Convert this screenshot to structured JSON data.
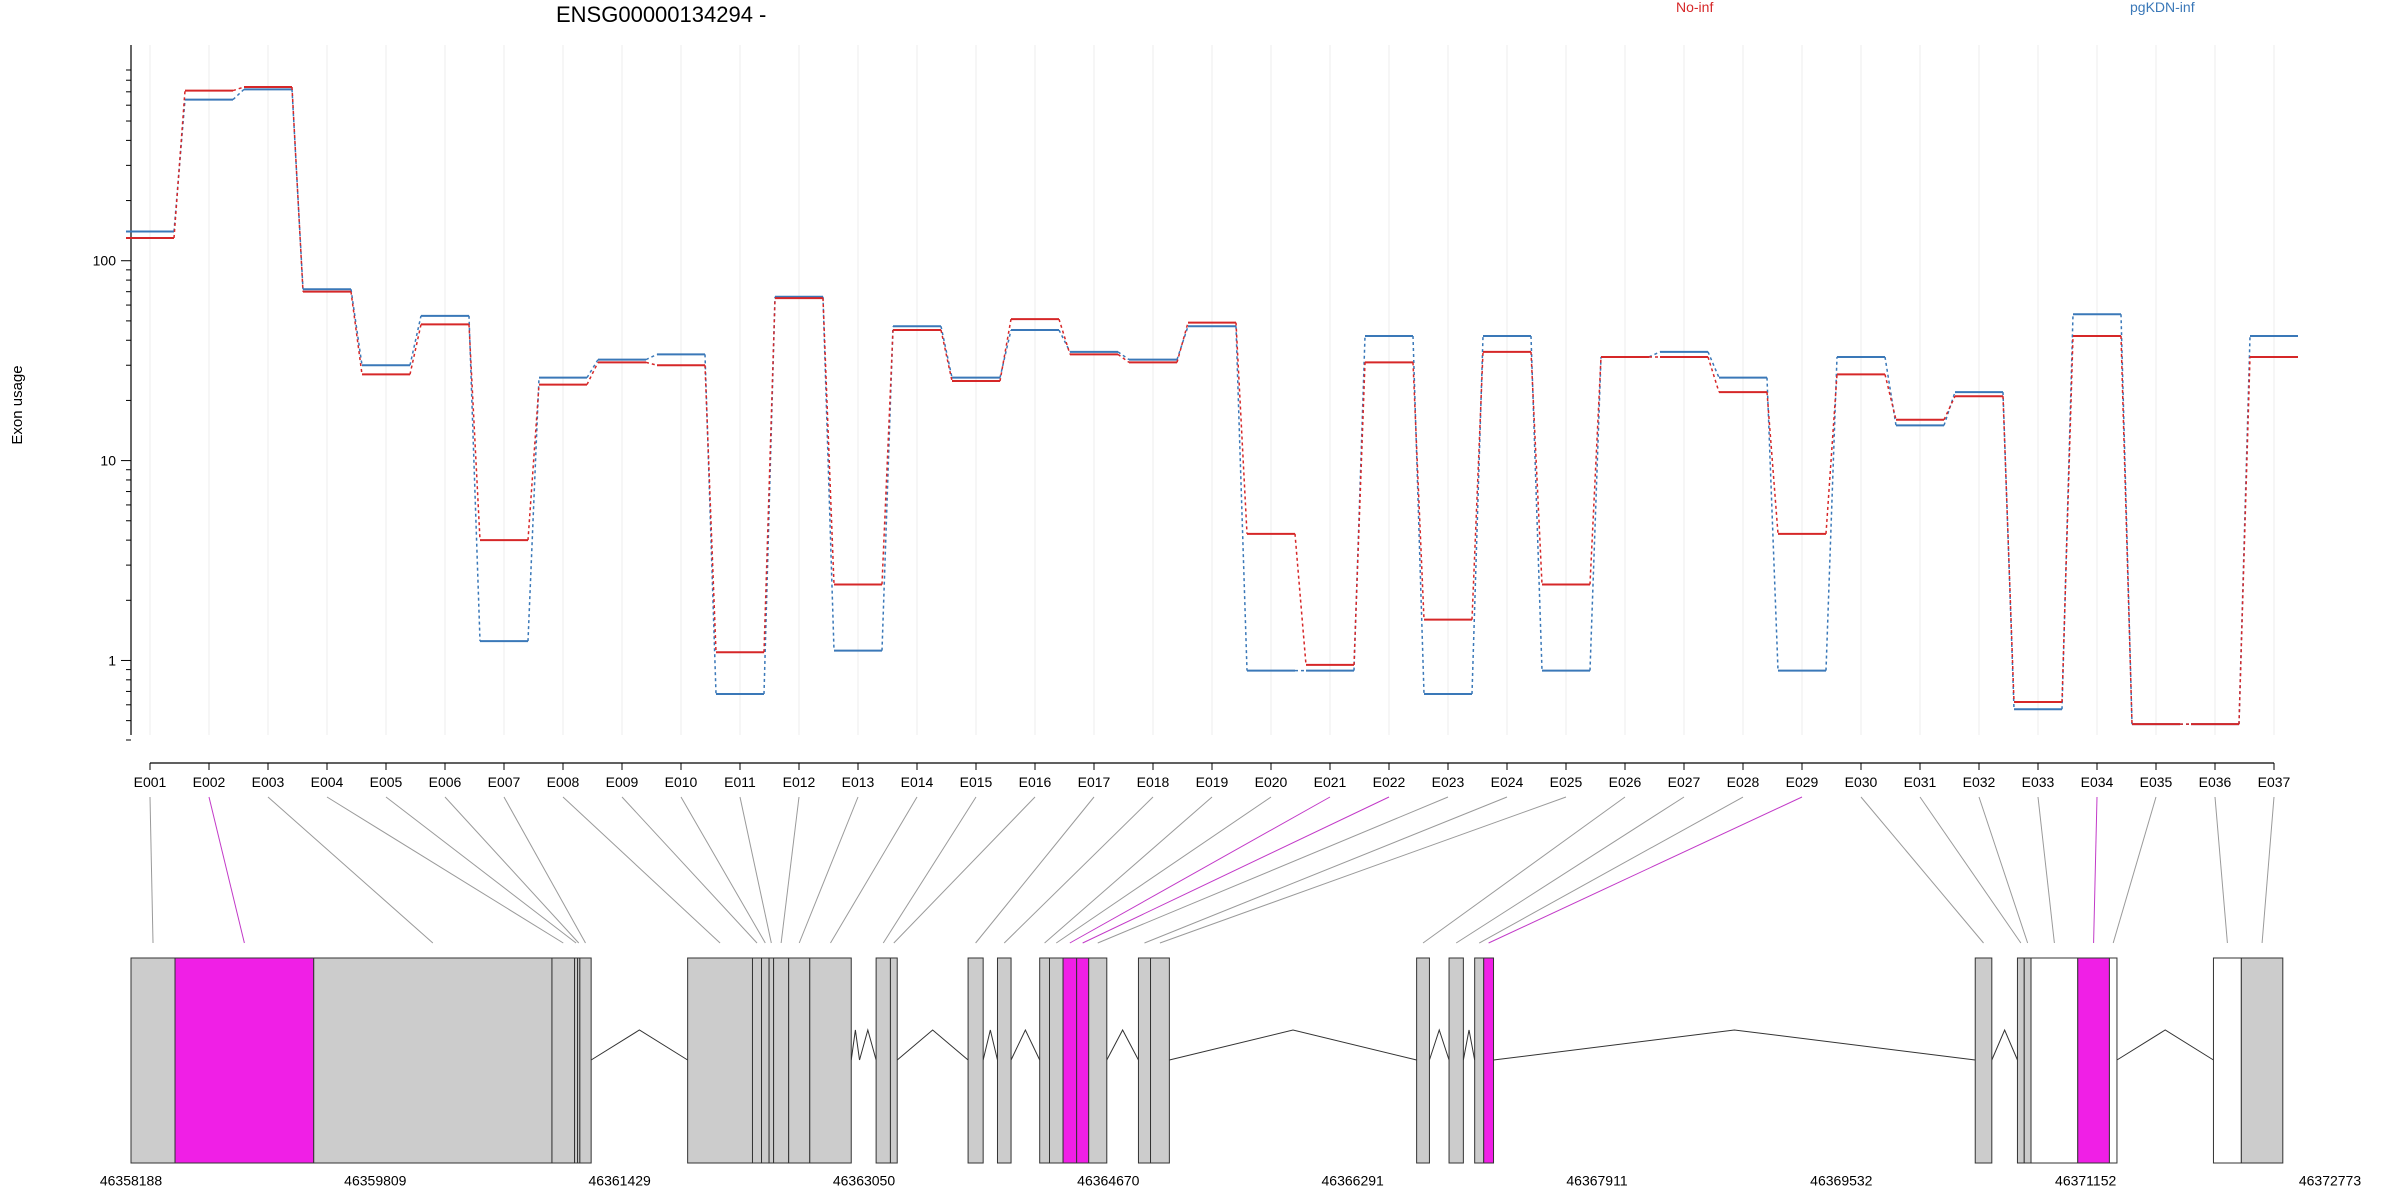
{
  "header": {
    "title": "ENSG00000134294 -",
    "legend": [
      {
        "label": "No-inf",
        "color": "#d62728"
      },
      {
        "label": "pgKDN-inf",
        "color": "#3a78b8"
      }
    ]
  },
  "chart_data": {
    "type": "line",
    "ylabel": "Exon usage",
    "yscale": "log",
    "ylim": [
      0.4,
      900
    ],
    "yticks": [
      "1",
      "10",
      "100"
    ],
    "categories": [
      "E001",
      "E002",
      "E003",
      "E004",
      "E005",
      "E006",
      "E007",
      "E008",
      "E009",
      "E010",
      "E011",
      "E012",
      "E013",
      "E014",
      "E015",
      "E016",
      "E017",
      "E018",
      "E019",
      "E020",
      "E021",
      "E022",
      "E023",
      "E024",
      "E025",
      "E026",
      "E027",
      "E028",
      "E029",
      "E030",
      "E031",
      "E032",
      "E033",
      "E034",
      "E035",
      "E036",
      "E037"
    ],
    "series": [
      {
        "name": "No-inf",
        "color": "#d62728",
        "values": [
          130,
          710,
          740,
          70,
          27,
          48,
          4,
          24,
          31,
          30,
          1.1,
          65,
          2.4,
          45,
          25,
          51,
          34,
          31,
          49,
          4.3,
          0.95,
          31,
          1.6,
          35,
          2.4,
          33,
          33,
          22,
          4.3,
          27,
          16,
          21,
          0.62,
          42,
          0.48,
          0.48,
          33
        ]
      },
      {
        "name": "pgKDN-inf",
        "color": "#3a78b8",
        "values": [
          140,
          640,
          720,
          72,
          30,
          53,
          1.25,
          26,
          32,
          34,
          0.68,
          66,
          1.12,
          47,
          26,
          45,
          35,
          32,
          47,
          0.89,
          0.89,
          42,
          0.68,
          42,
          0.89,
          33,
          35,
          26,
          0.89,
          33,
          15,
          22,
          0.57,
          54,
          0.48,
          0.48,
          42
        ]
      }
    ]
  },
  "gene_model": {
    "start": 46358188,
    "end": 46372773,
    "axis_labels": [
      "46358188",
      "46359809",
      "46361429",
      "46363050",
      "46364670",
      "46366291",
      "46367911",
      "46369532",
      "46371152",
      "46372773"
    ],
    "exons": [
      {
        "id": "E001",
        "start": 46358188,
        "end": 46358480,
        "fill": "#cccccc"
      },
      {
        "id": "E002",
        "start": 46358480,
        "end": 46359400,
        "fill": "#f01fe6",
        "significant": true
      },
      {
        "id": "E003",
        "start": 46359400,
        "end": 46360980,
        "fill": "#cccccc"
      },
      {
        "id": "E004",
        "start": 46360980,
        "end": 46361130,
        "fill": "#cccccc"
      },
      {
        "id": "E005",
        "start": 46361130,
        "end": 46361150,
        "fill": "#cccccc"
      },
      {
        "id": "E006",
        "start": 46361150,
        "end": 46361165,
        "fill": "#cccccc"
      },
      {
        "id": "E007",
        "start": 46361165,
        "end": 46361240,
        "fill": "#cccccc"
      },
      {
        "id": "E008",
        "start": 46361880,
        "end": 46362310,
        "fill": "#cccccc"
      },
      {
        "id": "E009",
        "start": 46362310,
        "end": 46362370,
        "fill": "#cccccc"
      },
      {
        "id": "E010",
        "start": 46362370,
        "end": 46362420,
        "fill": "#cccccc"
      },
      {
        "id": "E011",
        "start": 46362420,
        "end": 46362450,
        "fill": "#cccccc"
      },
      {
        "id": "E012",
        "start": 46362450,
        "end": 46362550,
        "fill": "#cccccc"
      },
      {
        "id": "E013",
        "start": 46362550,
        "end": 46362690,
        "fill": "#cccccc"
      },
      {
        "id": "E014",
        "start": 46362690,
        "end": 46362965,
        "fill": "#cccccc"
      },
      {
        "id": "E015",
        "start": 46363130,
        "end": 46363225,
        "fill": "#cccccc"
      },
      {
        "id": "E016",
        "start": 46363225,
        "end": 46363270,
        "fill": "#cccccc"
      },
      {
        "id": "E017",
        "start": 46363740,
        "end": 46363840,
        "fill": "#cccccc"
      },
      {
        "id": "E018",
        "start": 46363935,
        "end": 46364025,
        "fill": "#cccccc"
      },
      {
        "id": "E019",
        "start": 46364215,
        "end": 46364280,
        "fill": "#cccccc"
      },
      {
        "id": "E020",
        "start": 46364280,
        "end": 46364370,
        "fill": "#cccccc"
      },
      {
        "id": "E021",
        "start": 46364370,
        "end": 46364460,
        "fill": "#f01fe6",
        "significant": true
      },
      {
        "id": "E022",
        "start": 46364460,
        "end": 46364540,
        "fill": "#f01fe6",
        "significant": true
      },
      {
        "id": "E023",
        "start": 46364540,
        "end": 46364660,
        "fill": "#cccccc"
      },
      {
        "id": "E024",
        "start": 46364870,
        "end": 46364950,
        "fill": "#cccccc"
      },
      {
        "id": "E025",
        "start": 46364950,
        "end": 46365075,
        "fill": "#cccccc"
      },
      {
        "id": "E026",
        "start": 46366715,
        "end": 46366800,
        "fill": "#cccccc"
      },
      {
        "id": "E027",
        "start": 46366930,
        "end": 46367025,
        "fill": "#cccccc"
      },
      {
        "id": "E028",
        "start": 46367100,
        "end": 46367160,
        "fill": "#cccccc"
      },
      {
        "id": "E029",
        "start": 46367160,
        "end": 46367225,
        "fill": "#f01fe6",
        "significant": true
      },
      {
        "id": "E030",
        "start": 46370420,
        "end": 46370530,
        "fill": "#cccccc"
      },
      {
        "id": "E031",
        "start": 46370700,
        "end": 46370745,
        "fill": "#cccccc"
      },
      {
        "id": "E032",
        "start": 46370745,
        "end": 46370790,
        "fill": "#cccccc"
      },
      {
        "id": "E033",
        "start": 46370790,
        "end": 46371100,
        "fill": "#ffffff"
      },
      {
        "id": "E034",
        "start": 46371100,
        "end": 46371310,
        "fill": "#f01fe6",
        "significant": true
      },
      {
        "id": "E035",
        "start": 46371310,
        "end": 46371360,
        "fill": "#ffffff"
      },
      {
        "id": "E036",
        "start": 46372000,
        "end": 46372185,
        "fill": "#ffffff"
      },
      {
        "id": "E037",
        "start": 46372185,
        "end": 46372460,
        "fill": "#cccccc"
      }
    ],
    "introns": [
      [
        46361240,
        46361880
      ],
      [
        46362965,
        46363020
      ],
      [
        46363020,
        46363130
      ],
      [
        46363270,
        46363740
      ],
      [
        46363840,
        46363935
      ],
      [
        46364025,
        46364215
      ],
      [
        46364660,
        46364870
      ],
      [
        46365075,
        46366715
      ],
      [
        46366800,
        46366930
      ],
      [
        46367025,
        46367100
      ],
      [
        46367225,
        46370420
      ],
      [
        46370530,
        46370700
      ],
      [
        46371360,
        46372000
      ]
    ]
  }
}
